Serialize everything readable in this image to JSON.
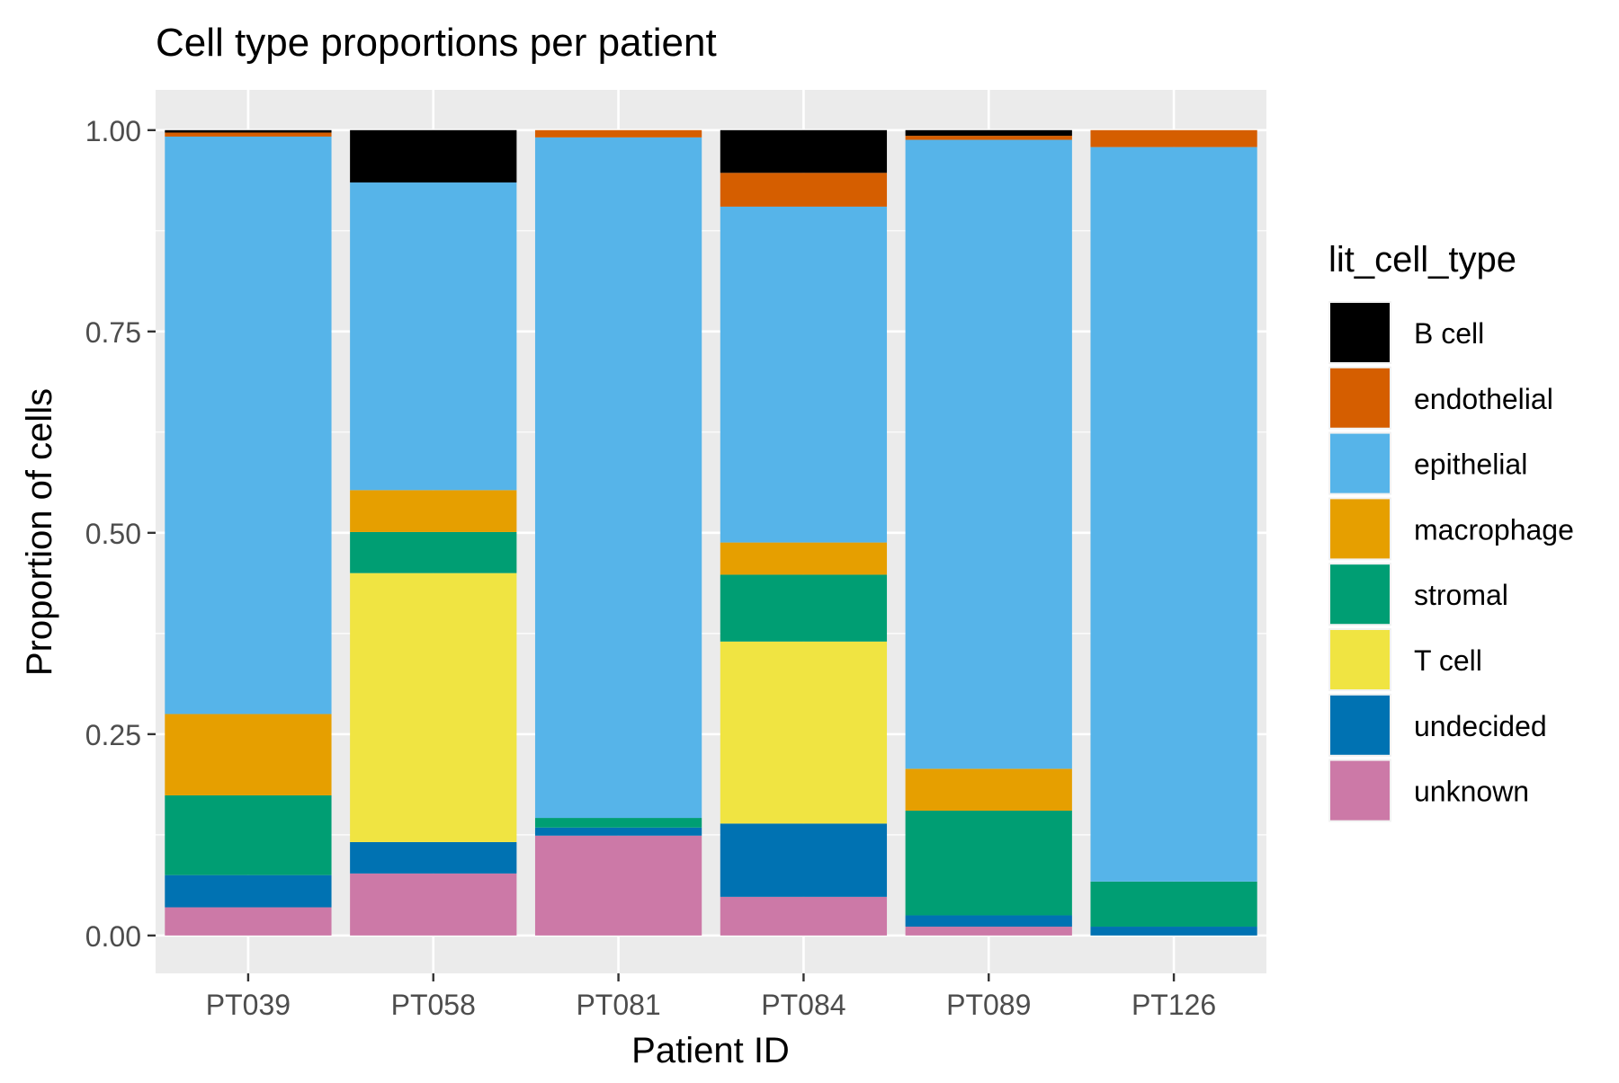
{
  "chart_data": {
    "type": "bar",
    "stacked": true,
    "title": "Cell type proportions per patient",
    "xlabel": "Patient ID",
    "ylabel": "Proportion of cells",
    "ylim": [
      -0.047,
      1.05
    ],
    "yticks": [
      0.0,
      0.25,
      0.5,
      0.75,
      1.0
    ],
    "ytick_labels": [
      "0.00",
      "0.25",
      "0.50",
      "0.75",
      "1.00"
    ],
    "grid": true,
    "legend_position": "right",
    "legend_title": "lit_cell_type",
    "categories": [
      "PT039",
      "PT058",
      "PT081",
      "PT084",
      "PT089",
      "PT126"
    ],
    "series": [
      {
        "name": "unknown",
        "color": "#CC79A7",
        "values": [
          0.035,
          0.077,
          0.124,
          0.048,
          0.011,
          0.0
        ]
      },
      {
        "name": "undecided",
        "color": "#0072B2",
        "values": [
          0.04,
          0.039,
          0.01,
          0.091,
          0.014,
          0.011
        ]
      },
      {
        "name": "T cell",
        "color": "#F0E442",
        "values": [
          0.0,
          0.334,
          0.0,
          0.226,
          0.0,
          0.0
        ]
      },
      {
        "name": "stromal",
        "color": "#009E73",
        "values": [
          0.099,
          0.051,
          0.012,
          0.083,
          0.13,
          0.056
        ]
      },
      {
        "name": "macrophage",
        "color": "#E69F00",
        "values": [
          0.101,
          0.052,
          0.0,
          0.04,
          0.052,
          0.0
        ]
      },
      {
        "name": "epithelial",
        "color": "#56B4E9",
        "values": [
          0.717,
          0.382,
          0.845,
          0.417,
          0.781,
          0.912
        ]
      },
      {
        "name": "endothelial",
        "color": "#D55E00",
        "values": [
          0.005,
          0.0,
          0.009,
          0.042,
          0.005,
          0.021
        ]
      },
      {
        "name": "B cell",
        "color": "#000000",
        "values": [
          0.003,
          0.065,
          0.0,
          0.053,
          0.007,
          0.0
        ]
      }
    ],
    "legend_order": [
      "B cell",
      "endothelial",
      "epithelial",
      "macrophage",
      "stromal",
      "T cell",
      "undecided",
      "unknown"
    ],
    "panel_background": "#EBEBEB",
    "grid_color": "#FFFFFF"
  }
}
